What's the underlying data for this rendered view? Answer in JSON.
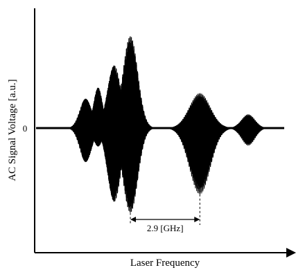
{
  "chart_data": {
    "type": "line",
    "title": "",
    "xlabel": "Laser Frequency",
    "ylabel": "AC Signal Voltage [a.u.]",
    "y_ticks": [
      "0"
    ],
    "grid": false,
    "legend": "none",
    "xlim": [
      0,
      1
    ],
    "ylim": [
      -1,
      1
    ],
    "series": [
      {
        "values_description_note": "",
        "x": [],
        "y": []
      }
    ],
    "envelope_bursts": [
      {
        "center": 0.2,
        "width": 0.04,
        "upper": 0.32,
        "lower": -0.37
      },
      {
        "center": 0.25,
        "width": 0.03,
        "upper": 0.44,
        "lower": -0.2
      },
      {
        "center": 0.315,
        "width": 0.045,
        "upper": 0.68,
        "lower": -0.8
      },
      {
        "center": 0.38,
        "width": 0.05,
        "upper": 1.0,
        "lower": -0.92
      },
      {
        "center": 0.66,
        "width": 0.07,
        "upper": 0.38,
        "lower": -0.72
      },
      {
        "center": 0.855,
        "width": 0.045,
        "upper": 0.15,
        "lower": -0.19
      }
    ],
    "annotation": {
      "label": "2.9 [GHz]",
      "x_start": 0.38,
      "x_end": 0.66
    }
  }
}
